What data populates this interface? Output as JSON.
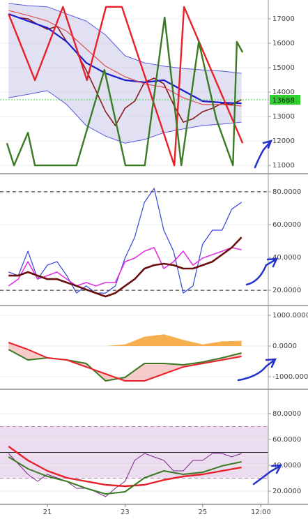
{
  "chart_data": [
    {
      "type": "line",
      "xlim": [
        19.78,
        26.69
      ],
      "ylim": [
        10690,
        17770
      ],
      "yticks": [
        11000,
        12000,
        13000,
        14000,
        15000,
        16000,
        17000
      ],
      "grid": true,
      "fill_between": [
        1,
        2
      ],
      "fill_color": "#c9c9ea",
      "last_price": 13688,
      "last_price_color": "#2fd12f",
      "series": [
        {
          "color": "#8b1a1a",
          "width": 1.6,
          "x": [
            20.0,
            20.25,
            20.5,
            20.75,
            21.0,
            21.25,
            21.5,
            21.75,
            22.0,
            22.25,
            22.5,
            22.75,
            23.0,
            23.25,
            23.5,
            23.75,
            24.0,
            24.25,
            24.5,
            24.75,
            25.0,
            25.25,
            25.5,
            25.75,
            26.0
          ],
          "values": [
            17200,
            17050,
            17000,
            16770,
            16570,
            16690,
            16060,
            15630,
            14900,
            14060,
            13200,
            12630,
            13340,
            13630,
            14400,
            14570,
            14340,
            13490,
            12770,
            12910,
            13200,
            13340,
            13540,
            13490,
            13688
          ]
        },
        {
          "color": "#5a5ae0",
          "width": 1,
          "x": [
            20.0,
            20.5,
            21.0,
            21.5,
            22.0,
            22.5,
            23.0,
            23.5,
            24.0,
            24.5,
            25.0,
            25.5,
            26.0
          ],
          "values": [
            17630,
            17540,
            17490,
            17200,
            16910,
            16340,
            15490,
            15200,
            15060,
            14970,
            14910,
            14860,
            14770
          ]
        },
        {
          "color": "#5a5ae0",
          "width": 1,
          "x": [
            20.0,
            20.5,
            21.0,
            21.5,
            22.0,
            22.5,
            23.0,
            23.5,
            24.0,
            24.5,
            25.0,
            25.5,
            26.0
          ],
          "values": [
            13770,
            13910,
            14060,
            13490,
            12630,
            12200,
            11910,
            12060,
            12340,
            12490,
            12630,
            12690,
            12770
          ]
        },
        {
          "color": "#1c1ccc",
          "width": 2.2,
          "x": [
            20.0,
            20.5,
            21.0,
            21.5,
            22.0,
            22.5,
            23.0,
            23.5,
            24.0,
            24.5,
            25.0,
            25.5,
            26.0
          ],
          "values": [
            17200,
            16910,
            16630,
            16060,
            15200,
            14770,
            14490,
            14400,
            14490,
            14060,
            13630,
            13570,
            13540
          ]
        },
        {
          "color": "#e05050",
          "width": 1.2,
          "x": [
            20.0,
            20.5,
            21.0,
            21.5,
            22.0,
            22.5,
            23.0,
            23.5,
            24.0,
            24.5,
            25.0,
            25.5,
            26.0
          ],
          "values": [
            17340,
            17140,
            16910,
            16490,
            15770,
            15060,
            14630,
            14340,
            14200,
            13770,
            13490,
            13490,
            13430
          ]
        },
        {
          "color": "#e8202a",
          "width": 2.4,
          "x": [
            20.0,
            20.68,
            21.4,
            22.02,
            22.51,
            22.92,
            24.27,
            24.52,
            26.03
          ],
          "values": [
            17200,
            14490,
            17490,
            14490,
            17490,
            17490,
            11000,
            17490,
            11910
          ]
        },
        {
          "color": "#3a7a22",
          "width": 2.4,
          "x": [
            19.96,
            20.14,
            20.5,
            20.68,
            21.75,
            22.47,
            23.01,
            23.51,
            24.02,
            24.45,
            24.9,
            25.35,
            25.78,
            25.88,
            26.03
          ],
          "values": [
            11910,
            11000,
            12340,
            11000,
            11000,
            14910,
            11000,
            11000,
            17060,
            11000,
            16060,
            12910,
            11000,
            16060,
            15630
          ]
        }
      ]
    },
    {
      "type": "line",
      "xlim": [
        19.78,
        26.69
      ],
      "ylim": [
        11.1,
        90.6
      ],
      "yticks": [
        {
          "value": 20,
          "label": "20.0000"
        },
        {
          "value": 40,
          "label": "40.0000"
        },
        {
          "value": 60,
          "label": "60.0000"
        },
        {
          "value": 80,
          "label": "80.0000"
        }
      ],
      "grid": true,
      "hlines": [
        {
          "value": 80,
          "style": "dashed",
          "color": "#222"
        },
        {
          "value": 20,
          "style": "dashed",
          "color": "#222"
        }
      ],
      "series": [
        {
          "color": "#3344dd",
          "width": 1.2,
          "x": [
            20.0,
            20.25,
            20.5,
            20.75,
            21.0,
            21.25,
            21.5,
            21.75,
            22.0,
            22.25,
            22.5,
            22.75,
            23.0,
            23.25,
            23.5,
            23.75,
            24.0,
            24.25,
            24.5,
            24.75,
            25.0,
            25.25,
            25.5,
            25.75,
            26.0
          ],
          "values": [
            31.1,
            28.9,
            43.8,
            26.8,
            35.3,
            37.4,
            28.9,
            18.3,
            22.6,
            18.3,
            18.3,
            22.6,
            39.6,
            52.3,
            73.6,
            82.1,
            56.6,
            43.8,
            18.3,
            22.6,
            48.1,
            56.6,
            56.6,
            69.4,
            73.6
          ]
        },
        {
          "color": "#e030e0",
          "width": 1.6,
          "x": [
            20.0,
            20.25,
            20.5,
            20.75,
            21.0,
            21.25,
            21.5,
            21.75,
            22.0,
            22.25,
            22.5,
            22.75,
            23.0,
            23.25,
            23.5,
            23.75,
            24.0,
            24.25,
            24.5,
            24.75,
            25.0,
            25.25,
            25.5,
            25.75,
            26.0
          ],
          "values": [
            22.6,
            26.8,
            37.4,
            26.8,
            28.9,
            31.1,
            26.8,
            22.6,
            24.7,
            22.6,
            24.7,
            24.7,
            37.4,
            39.6,
            43.8,
            46.0,
            33.2,
            37.4,
            43.8,
            35.3,
            39.6,
            41.7,
            43.8,
            46.0,
            44.7
          ]
        },
        {
          "color": "#6a0d0d",
          "width": 2.6,
          "x": [
            20.0,
            20.25,
            20.5,
            20.75,
            21.0,
            21.25,
            21.5,
            21.75,
            22.0,
            22.25,
            22.5,
            22.75,
            23.0,
            23.25,
            23.5,
            23.75,
            24.0,
            24.25,
            24.5,
            24.75,
            25.0,
            25.25,
            25.5,
            25.75,
            26.0
          ],
          "values": [
            28.9,
            28.9,
            31.1,
            28.9,
            26.8,
            26.8,
            24.7,
            22.6,
            20.4,
            18.3,
            16.2,
            18.3,
            22.6,
            26.8,
            33.2,
            35.3,
            36.2,
            35.3,
            33.2,
            33.2,
            35.3,
            37.4,
            41.7,
            46.0,
            52.3
          ]
        }
      ]
    },
    {
      "type": "line",
      "xlim": [
        19.78,
        26.69
      ],
      "ylim": [
        -1386,
        1273
      ],
      "yticks": [
        {
          "value": -1000,
          "label": "-1000.0000"
        },
        {
          "value": 0,
          "label": "0.0000"
        },
        {
          "value": 1000,
          "label": "1000.0000"
        }
      ],
      "grid": true,
      "fill_between": [
        1,
        2
      ],
      "fill_color": "#f2a0a0",
      "series": [
        {
          "color": "#f5a030",
          "width": 0,
          "kind": "area",
          "x": [
            20.0,
            20.5,
            21.0,
            21.5,
            22.0,
            22.5,
            23.0,
            23.5,
            24.0,
            24.5,
            25.0,
            25.5,
            26.0
          ],
          "values": [
            0,
            0,
            0,
            0,
            0,
            0,
            50,
            300,
            380,
            200,
            50,
            150,
            170
          ]
        },
        {
          "color": "#3a7a22",
          "width": 2,
          "x": [
            20.0,
            20.5,
            21.0,
            21.5,
            22.0,
            22.5,
            23.0,
            23.5,
            24.0,
            24.5,
            25.0,
            25.5,
            26.0
          ],
          "values": [
            -114,
            -455,
            -386,
            -455,
            -568,
            -1136,
            -1023,
            -568,
            -568,
            -614,
            -523,
            -386,
            -227
          ]
        },
        {
          "color": "#e8202a",
          "width": 2,
          "x": [
            20.0,
            20.5,
            21.0,
            21.5,
            22.0,
            22.5,
            23.0,
            23.5,
            24.0,
            24.5,
            25.0,
            25.5,
            26.0
          ],
          "values": [
            114,
            -114,
            -386,
            -455,
            -682,
            -909,
            -1136,
            -1136,
            -909,
            -682,
            -568,
            -455,
            -341
          ]
        }
      ]
    },
    {
      "type": "line",
      "xlim": [
        19.78,
        26.69
      ],
      "ylim": [
        10.3,
        97.8
      ],
      "yticks": [
        {
          "value": 20,
          "label": "20.0000"
        },
        {
          "value": 40,
          "label": "40.0000"
        },
        {
          "value": 60,
          "label": "60.0000"
        },
        {
          "value": 80,
          "label": "80.0000"
        }
      ],
      "grid": true,
      "band": [
        30,
        70
      ],
      "band_color": "#ecdcf0",
      "hlines": [
        {
          "value": 70,
          "style": "dashed",
          "color": "#b08aa0"
        },
        {
          "value": 50,
          "style": "solid",
          "color": "#222"
        },
        {
          "value": 30,
          "style": "dashed",
          "color": "#b08aa0"
        }
      ],
      "xticks": [
        {
          "value": 21,
          "label": "21"
        },
        {
          "value": 23,
          "label": "23"
        },
        {
          "value": 25,
          "label": "25"
        },
        {
          "value": 26.5,
          "label": "12:00"
        }
      ],
      "series": [
        {
          "color": "#7a2a8a",
          "width": 1,
          "x": [
            20.0,
            20.25,
            20.5,
            20.75,
            21.0,
            21.25,
            21.5,
            21.75,
            22.0,
            22.25,
            22.5,
            22.75,
            23.0,
            23.25,
            23.5,
            23.75,
            24.0,
            24.25,
            24.5,
            24.75,
            25.0,
            25.25,
            25.5,
            25.75,
            26.0
          ],
          "values": [
            49.2,
            41.1,
            33.0,
            27.6,
            33.0,
            30.3,
            27.6,
            22.2,
            22.2,
            19.5,
            15.7,
            22.2,
            27.6,
            43.8,
            49.2,
            46.5,
            43.8,
            35.7,
            35.7,
            43.8,
            43.8,
            49.2,
            49.2,
            46.5,
            49.2
          ]
        },
        {
          "color": "#e8202a",
          "width": 2.4,
          "x": [
            20.0,
            20.5,
            21.0,
            21.5,
            22.0,
            22.5,
            23.0,
            23.5,
            24.0,
            24.5,
            25.0,
            25.5,
            26.0
          ],
          "values": [
            54.6,
            43.8,
            35.7,
            30.3,
            27.6,
            24.9,
            23.8,
            24.9,
            28.6,
            31.4,
            33.0,
            35.7,
            38.4
          ]
        },
        {
          "color": "#3a7a22",
          "width": 2,
          "x": [
            20.0,
            20.5,
            21.0,
            21.5,
            22.0,
            22.5,
            23.0,
            23.5,
            24.0,
            24.5,
            25.0,
            25.5,
            26.0
          ],
          "values": [
            46.5,
            37.3,
            31.4,
            27.6,
            22.2,
            17.8,
            19.5,
            30.3,
            35.7,
            33.0,
            34.6,
            39.5,
            42.7
          ]
        }
      ]
    }
  ]
}
